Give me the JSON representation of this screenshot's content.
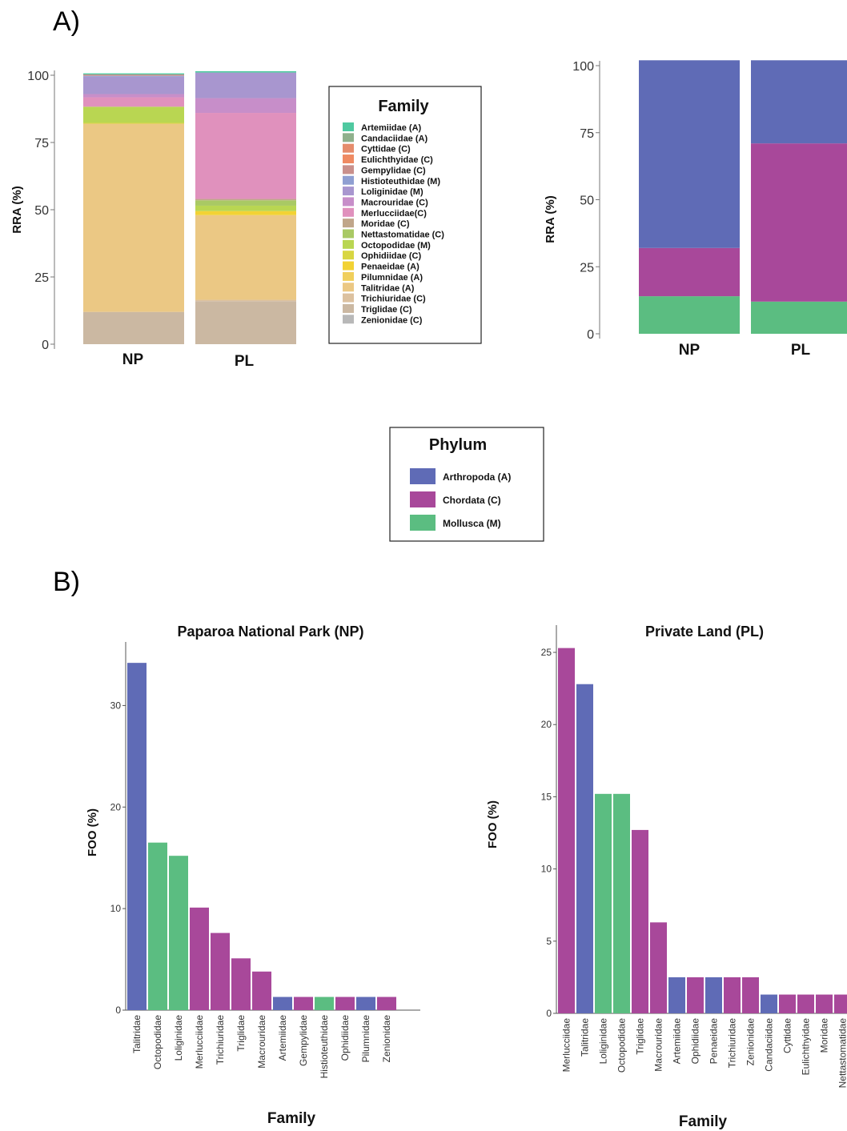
{
  "panel_labels": {
    "a": "A)",
    "b": "B)"
  },
  "colors": {
    "arthropoda": "#5f6bb6",
    "chordata": "#a8489a",
    "mollusca": "#5bbd81"
  },
  "family_legend": {
    "title": "Family",
    "items": [
      {
        "label": "Artemiidae (A)",
        "color": "#4fc9a0"
      },
      {
        "label": "Candaciidae (A)",
        "color": "#8fb08c"
      },
      {
        "label": "Cyttidae (C)",
        "color": "#e58c6c"
      },
      {
        "label": "Eulichthyidae (C)",
        "color": "#ef8a62"
      },
      {
        "label": "Gempylidae (C)",
        "color": "#c9908c"
      },
      {
        "label": "Histioteuthidae (M)",
        "color": "#8f9fd2"
      },
      {
        "label": "Loliginidae (M)",
        "color": "#a896cf"
      },
      {
        "label": "Macrouridae (C)",
        "color": "#c78ec9"
      },
      {
        "label": "Merlucciidae(C)",
        "color": "#e091bd"
      },
      {
        "label": "Moridae (C)",
        "color": "#c0a68a"
      },
      {
        "label": "Nettastomatidae (C)",
        "color": "#a9c964"
      },
      {
        "label": "Octopodidae (M)",
        "color": "#b9d652"
      },
      {
        "label": "Ophidiidae (C)",
        "color": "#d8d642"
      },
      {
        "label": "Penaeidae (A)",
        "color": "#f2d234"
      },
      {
        "label": "Pilumnidae (A)",
        "color": "#f0cf5c"
      },
      {
        "label": "Talitridae (A)",
        "color": "#ebc884"
      },
      {
        "label": "Trichiuridae (C)",
        "color": "#dcc19f"
      },
      {
        "label": "Triglidae (C)",
        "color": "#cbb8a2"
      },
      {
        "label": "Zenionidae (C)",
        "color": "#b8b8b8"
      }
    ]
  },
  "phylum_legend": {
    "title": "Phylum",
    "items": [
      {
        "label": "Arthropoda (A)",
        "color": "#5f6bb6"
      },
      {
        "label": "Chordata (C)",
        "color": "#a8489a"
      },
      {
        "label": "Mollusca (M)",
        "color": "#5bbd81"
      }
    ]
  },
  "chart_data": [
    {
      "id": "rra_family",
      "type": "bar",
      "stacked": true,
      "categories": [
        "NP",
        "PL"
      ],
      "ylabel": "RRA (%)",
      "xlabel": "",
      "ylim": [
        0,
        100
      ],
      "yticks": [
        0,
        25,
        50,
        75,
        100
      ],
      "series": [
        {
          "name": "Zenionidae (C)",
          "color": "#c4b6a5",
          "values": [
            0,
            0
          ]
        },
        {
          "name": "Triglidae (C)",
          "color": "#cbb8a2",
          "values": [
            12,
            16
          ]
        },
        {
          "name": "Trichiuridae (C)",
          "color": "#dcc19f",
          "values": [
            0,
            0.5
          ]
        },
        {
          "name": "Talitridae (A)",
          "color": "#ebc884",
          "values": [
            70,
            31.5
          ]
        },
        {
          "name": "Pilumnidae (A)",
          "color": "#f0cf5c",
          "values": [
            0,
            0
          ]
        },
        {
          "name": "Penaeidae (A)",
          "color": "#f2d234",
          "values": [
            0,
            1.5
          ]
        },
        {
          "name": "Ophidiidae (C)",
          "color": "#d8d642",
          "values": [
            0.3,
            0
          ]
        },
        {
          "name": "Octopodidae (M)",
          "color": "#b9d652",
          "values": [
            6,
            2
          ]
        },
        {
          "name": "Nettastomatidae (C)",
          "color": "#a9c964",
          "values": [
            0,
            2
          ]
        },
        {
          "name": "Moridae (C)",
          "color": "#c0a68a",
          "values": [
            0,
            0.5
          ]
        },
        {
          "name": "Merlucciidae(C)",
          "color": "#e091bd",
          "values": [
            3.5,
            32
          ]
        },
        {
          "name": "Macrouridae (C)",
          "color": "#c78ec9",
          "values": [
            1.2,
            5.5
          ]
        },
        {
          "name": "Loliginidae (M)",
          "color": "#a896cf",
          "values": [
            6.5,
            9.5
          ]
        },
        {
          "name": "Histioteuthidae (M)",
          "color": "#8f9fd2",
          "values": [
            0.3,
            0
          ]
        },
        {
          "name": "Gempylidae (C)",
          "color": "#c9908c",
          "values": [
            0.5,
            0
          ]
        },
        {
          "name": "Eulichthyidae (C)",
          "color": "#ef8a62",
          "values": [
            0,
            0
          ]
        },
        {
          "name": "Cyttidae (C)",
          "color": "#e58c6c",
          "values": [
            0,
            0
          ]
        },
        {
          "name": "Candaciidae (A)",
          "color": "#8fb08c",
          "values": [
            0,
            0
          ]
        },
        {
          "name": "Artemiidae (A)",
          "color": "#4fc9a0",
          "values": [
            0.4,
            0.5
          ]
        }
      ]
    },
    {
      "id": "rra_phylum",
      "type": "bar",
      "stacked": true,
      "categories": [
        "NP",
        "PL"
      ],
      "ylabel": "RRA (%)",
      "xlabel": "",
      "ylim": [
        0,
        100
      ],
      "yticks": [
        0,
        25,
        50,
        75,
        100
      ],
      "series": [
        {
          "name": "Mollusca (M)",
          "color": "#5bbd81",
          "values": [
            14,
            12
          ]
        },
        {
          "name": "Chordata (C)",
          "color": "#a8489a",
          "values": [
            18,
            59
          ]
        },
        {
          "name": "Arthropoda (A)",
          "color": "#5f6bb6",
          "values": [
            70,
            31
          ]
        }
      ]
    },
    {
      "id": "foo_np",
      "type": "bar",
      "title": "Paparoa National Park (NP)",
      "xlabel": "Family",
      "ylabel": "FOO (%)",
      "ylim": [
        0,
        35
      ],
      "yticks": [
        0,
        10,
        20,
        30
      ],
      "categories": [
        "Talitridae",
        "Octopodidae",
        "Loliginidae",
        "Merlucciidae",
        "Trichiuridae",
        "Triglidae",
        "Macrouridae",
        "Artemiidae",
        "Gempylidae",
        "Histioteuthidae",
        "Ophidiidae",
        "Pilumnidae",
        "Zenionidae"
      ],
      "values": [
        34.2,
        16.5,
        15.2,
        10.1,
        7.6,
        5.1,
        3.8,
        1.3,
        1.3,
        1.3,
        1.3,
        1.3,
        1.3
      ],
      "phylum": [
        "A",
        "M",
        "M",
        "C",
        "C",
        "C",
        "C",
        "A",
        "C",
        "M",
        "C",
        "A",
        "C"
      ]
    },
    {
      "id": "foo_pl",
      "type": "bar",
      "title": "Private Land (PL)",
      "xlabel": "Family",
      "ylabel": "FOO (%)",
      "ylim": [
        0,
        26
      ],
      "yticks": [
        0,
        5,
        10,
        15,
        20,
        25
      ],
      "categories": [
        "Merlucciidae",
        "Talitridae",
        "Loliginidae",
        "Octopodidae",
        "Triglidae",
        "Macrouridae",
        "Artemiidae",
        "Ophidiidae",
        "Penaeidae",
        "Trichiuridae",
        "Zenionidae",
        "Candaciidae",
        "Cyttidae",
        "Eulichthyidae",
        "Moridae",
        "Nettastomatidae"
      ],
      "values": [
        25.3,
        22.8,
        15.2,
        15.2,
        12.7,
        6.3,
        2.5,
        2.5,
        2.5,
        2.5,
        2.5,
        1.3,
        1.3,
        1.3,
        1.3,
        1.3
      ],
      "phylum": [
        "C",
        "A",
        "M",
        "M",
        "C",
        "C",
        "A",
        "C",
        "A",
        "C",
        "C",
        "A",
        "C",
        "C",
        "C",
        "C"
      ]
    }
  ]
}
